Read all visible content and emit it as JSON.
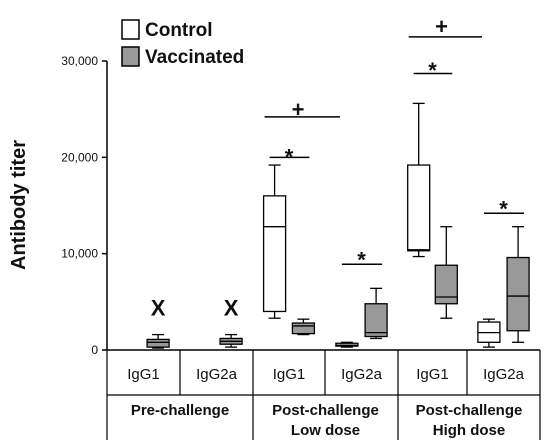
{
  "chart_data": {
    "type": "box",
    "title": "",
    "xlabel": "",
    "ylabel": "Antibody titer",
    "ylim": [
      0,
      30000
    ],
    "yticks": [
      {
        "value": 0,
        "label": "0"
      },
      {
        "value": 10000,
        "label": "10,000"
      },
      {
        "value": 20000,
        "label": "20,000"
      },
      {
        "value": 30000,
        "label": "30,000"
      }
    ],
    "legend": {
      "position": "top-left",
      "entries": [
        {
          "name": "Control",
          "color": "#ffffff"
        },
        {
          "name": "Vaccinated",
          "color": "#999999"
        }
      ]
    },
    "categories": [
      {
        "label": "IgG1",
        "group": "pre"
      },
      {
        "label": "IgG2a",
        "group": "pre"
      },
      {
        "label": "IgG1",
        "group": "low"
      },
      {
        "label": "IgG2a",
        "group": "low"
      },
      {
        "label": "IgG1",
        "group": "high"
      },
      {
        "label": "IgG2a",
        "group": "high"
      }
    ],
    "groups": [
      {
        "id": "pre",
        "lines": [
          "Pre-challenge"
        ]
      },
      {
        "id": "low",
        "lines": [
          "Post-challenge",
          "Low dose"
        ]
      },
      {
        "id": "high",
        "lines": [
          "Post-challenge",
          "High dose"
        ]
      }
    ],
    "series": [
      {
        "name": "Control",
        "boxes": [
          null,
          null,
          {
            "min": 3300,
            "q1": 4000,
            "median": 12800,
            "q3": 16000,
            "max": 19200
          },
          {
            "min": 300,
            "q1": 400,
            "median": 500,
            "q3": 700,
            "max": 800
          },
          {
            "min": 9700,
            "q1": 10300,
            "median": 10400,
            "q3": 19200,
            "max": 25600
          },
          {
            "min": 300,
            "q1": 800,
            "median": 1800,
            "q3": 2900,
            "max": 3200
          }
        ]
      },
      {
        "name": "Vaccinated",
        "boxes": [
          {
            "min": 200,
            "q1": 300,
            "median": 800,
            "q3": 1100,
            "max": 1600
          },
          {
            "min": 300,
            "q1": 600,
            "median": 900,
            "q3": 1200,
            "max": 1600
          },
          {
            "min": 1600,
            "q1": 1700,
            "median": 2500,
            "q3": 2800,
            "max": 3200
          },
          {
            "min": 1200,
            "q1": 1400,
            "median": 1800,
            "q3": 4800,
            "max": 6400
          },
          {
            "min": 3300,
            "q1": 4800,
            "median": 5500,
            "q3": 8800,
            "max": 12800
          },
          {
            "min": 800,
            "q1": 2000,
            "median": 5600,
            "q3": 9600,
            "max": 12800
          }
        ]
      }
    ],
    "annotations": [
      {
        "text": "X",
        "category": 0,
        "y": 4200
      },
      {
        "text": "X",
        "category": 1,
        "y": 4200
      },
      {
        "text": "*",
        "category": 2,
        "y": 20500,
        "bar": {
          "y": 20000
        }
      },
      {
        "text": "+",
        "category": 2,
        "y": 24800,
        "bar": {
          "y": 24200
        }
      },
      {
        "text": "*",
        "category": 3,
        "y": 9800,
        "bar": {
          "y": 8900
        }
      },
      {
        "text": "*",
        "category": 4,
        "y": 29500,
        "bar": {
          "y": 28700
        }
      },
      {
        "text": "+",
        "category": 4,
        "y": 33400,
        "bar": {
          "y": 32500
        }
      },
      {
        "text": "*",
        "category": 5,
        "y": 15100,
        "bar": {
          "y": 14200
        }
      }
    ]
  }
}
